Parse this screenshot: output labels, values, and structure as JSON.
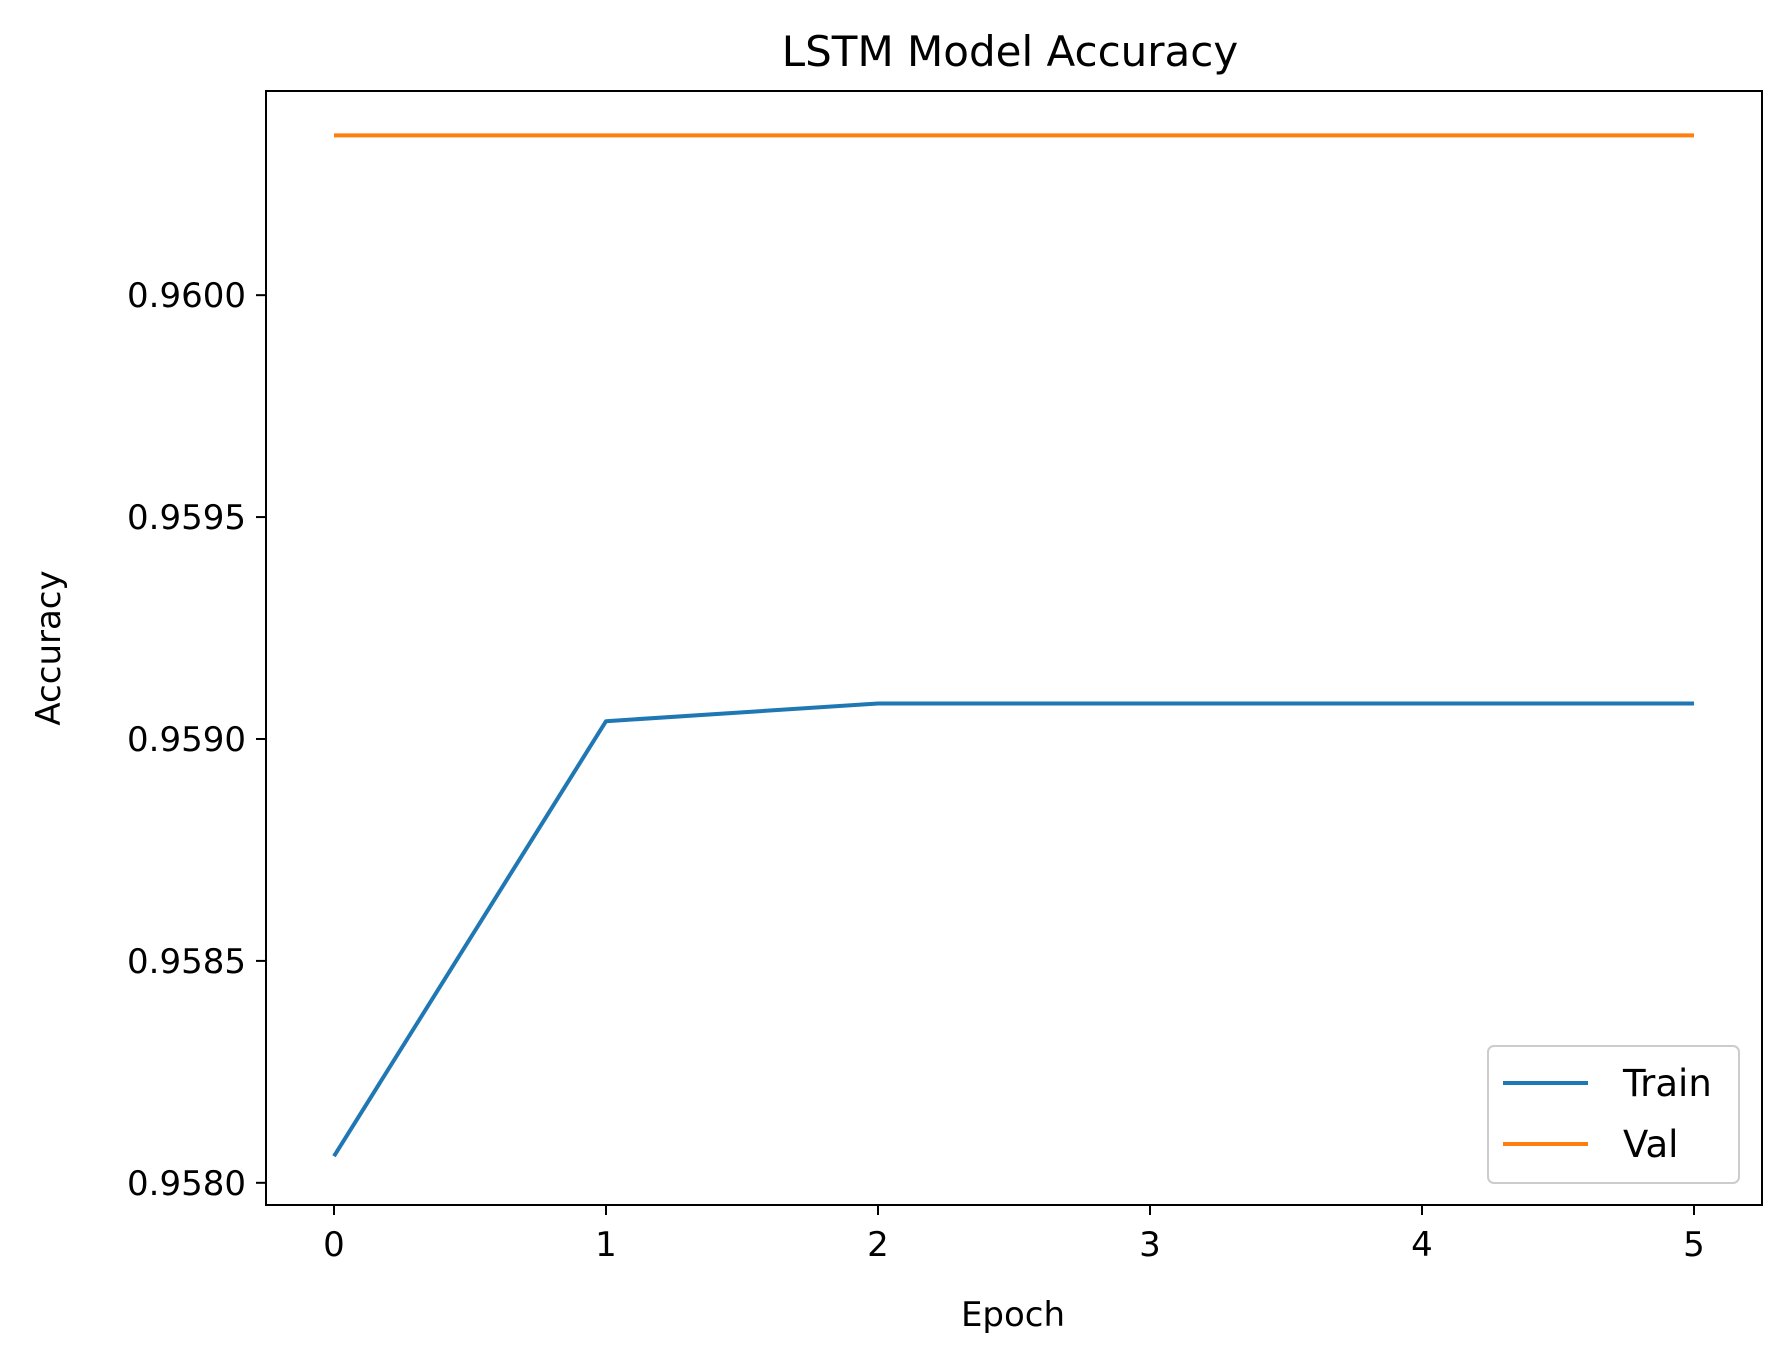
{
  "chart_data": {
    "type": "line",
    "title": "LSTM Model Accuracy",
    "xlabel": "Epoch",
    "ylabel": "Accuracy",
    "x": [
      0,
      1,
      2,
      3,
      4,
      5
    ],
    "xlim": [
      -0.25,
      5.25
    ],
    "ylim": [
      0.95795,
      0.96046
    ],
    "xticks": [
      0,
      1,
      2,
      3,
      4,
      5
    ],
    "yticks": [
      0.958,
      0.9585,
      0.959,
      0.9595,
      0.96
    ],
    "ytick_labels": [
      "0.9580",
      "0.9585",
      "0.9590",
      "0.9595",
      "0.9600"
    ],
    "grid": false,
    "legend_position": "lower-right",
    "series": [
      {
        "name": "Train",
        "color": "#1f77b4",
        "values": [
          0.95806,
          0.95904,
          0.95908,
          0.95908,
          0.95908,
          0.95908
        ]
      },
      {
        "name": "Val",
        "color": "#ff7f0e",
        "values": [
          0.96036,
          0.96036,
          0.96036,
          0.96036,
          0.96036,
          0.96036
        ]
      }
    ]
  }
}
